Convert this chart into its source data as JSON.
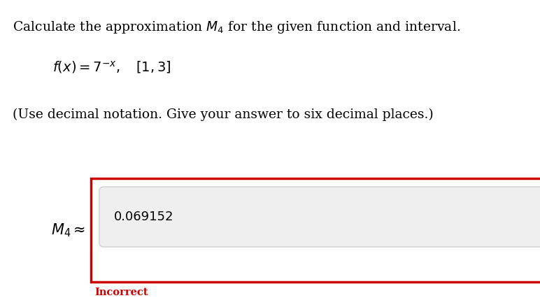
{
  "title_line": "Calculate the approximation $M_4$ for the given function and interval.",
  "function_line": "$f(x) = 7^{-x}, \\quad [1, 3]$",
  "instruction_line": "(Use decimal notation. Give your answer to six decimal places.)",
  "label_text": "$M_4 \\approx$",
  "answer_value": "0.069152",
  "incorrect_text": "Incorrect",
  "bg_color": "#ffffff",
  "input_box_color": "#efefef",
  "input_border_color": "#d0d0d0",
  "outer_box_border_color": "#cc0000",
  "incorrect_color": "#cc0000",
  "text_color": "#000000",
  "title_fontsize": 13.5,
  "function_fontsize": 14.0,
  "instruction_fontsize": 13.5,
  "label_fontsize": 15,
  "answer_fontsize": 13,
  "incorrect_fontsize": 10.5
}
